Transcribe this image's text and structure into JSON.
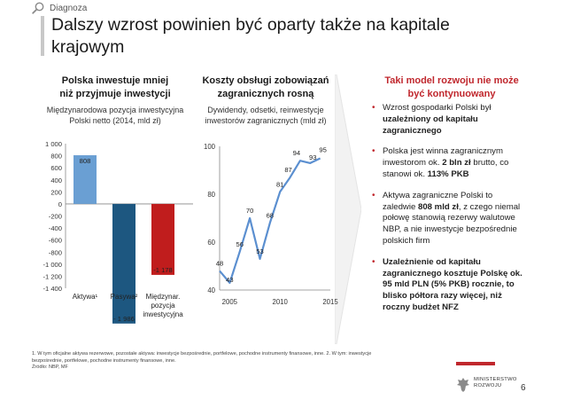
{
  "header": {
    "section": "Diagnoza",
    "title": "Dalszy wzrost powinien być oparty także na kapitale krajowym"
  },
  "left_panel": {
    "title_line1": "Polska inwestuje mniej",
    "title_line2": "niż przyjmuje inwestycji",
    "subtitle_line1": "Międzynarodowa pozycja inwestycyjna",
    "subtitle_line2": "Polski netto (2014, mld zł)"
  },
  "middle_panel": {
    "title_line1": "Koszty obsługi zobowiązań",
    "title_line2": "zagranicznych rosną",
    "subtitle_line1": "Dywidendy, odsetki, reinwestycje",
    "subtitle_line2": "inwestorów zagranicznych (mld zł)"
  },
  "right_panel": {
    "title_line1": "Taki model rozwoju nie może",
    "title_line2": "być kontynuowany",
    "bullets": [
      {
        "t1": "Wzrost gospodarki Polski był ",
        "b1": "uzależniony od kapitału zagranicznego",
        "t2": ""
      },
      {
        "t1": "Polska jest winna zagranicznym inwestorom ok. ",
        "b1": "2 bln zł",
        "t2": " brutto, co stanowi ok. ",
        "b2": "113% PKB"
      },
      {
        "t1": "Aktywa zagraniczne Polski to zaledwie ",
        "b1": "808 mld zł",
        "t2": ", z czego niemal połowę stanowią rezerwy walutowe NBP, a nie inwestycje bezpośrednie polskich firm"
      },
      {
        "t1": "",
        "b1": "Uzależnienie od kapitału zagranicznego kosztuje Polskę ok. 95 mld PLN (5% PKB) rocznie, to blisko półtora razy więcej, niż roczny budżet NFZ",
        "t2": ""
      }
    ]
  },
  "chart_data": [
    {
      "type": "bar",
      "categories": [
        "Aktywa¹",
        "Pasywa²",
        "Międzynar. pozycja inwestycyjna"
      ],
      "category_lines": [
        [
          "Aktywa¹"
        ],
        [
          "Pasywa²"
        ],
        [
          "Międzynar.",
          "pozycja",
          "inwestycyjna"
        ]
      ],
      "values": [
        808,
        -1986,
        -1178
      ],
      "value_labels": [
        "808",
        "- 1 986",
        "-1 178"
      ],
      "colors": [
        "#6a9fd3",
        "#1d5780",
        "#c01d1d"
      ],
      "ylim": [
        -1400,
        1000
      ],
      "yticks": [
        1000,
        800,
        600,
        400,
        200,
        0,
        -200,
        -400,
        -600,
        -800,
        -1000,
        -1200,
        -1400
      ],
      "ytick_labels": [
        "1 000",
        "800",
        "600",
        "400",
        "200",
        "0",
        "-200",
        "-400",
        "-600",
        "-800",
        "-1 000",
        "-1 200",
        "-1 400"
      ]
    },
    {
      "type": "line",
      "x": [
        2004,
        2005,
        2006,
        2007,
        2008,
        2009,
        2010,
        2011,
        2012,
        2013,
        2014
      ],
      "values": [
        48,
        43,
        56,
        70,
        53,
        68,
        81,
        87,
        94,
        93,
        95
      ],
      "point_labels": [
        "48",
        "43",
        "56",
        "70",
        "53",
        "68",
        "81",
        "87",
        "94",
        "93",
        "95"
      ],
      "color": "#5b8fd0",
      "ylim": [
        40,
        100
      ],
      "yticks": [
        40,
        60,
        80,
        100
      ],
      "xlim": [
        2004,
        2015
      ],
      "xticks": [
        2005,
        2010,
        2015
      ]
    }
  ],
  "footnote": {
    "line1": "1. W tym oficjalne aktywa rezerwowe, pozostałe aktywa: inwestycje bezpośrednie, portfelowe, pochodne instrumenty finansowe, inne. 2. W tym: inwestycje",
    "line2": "bezpośrednie, portfelowe, pochodne instrumenty finansowe, inne.",
    "line3": "Źródło: NBP, MF"
  },
  "logo": {
    "line1": "MINISTERSTWO",
    "line2": "ROZWOJU"
  },
  "page_number": "6"
}
